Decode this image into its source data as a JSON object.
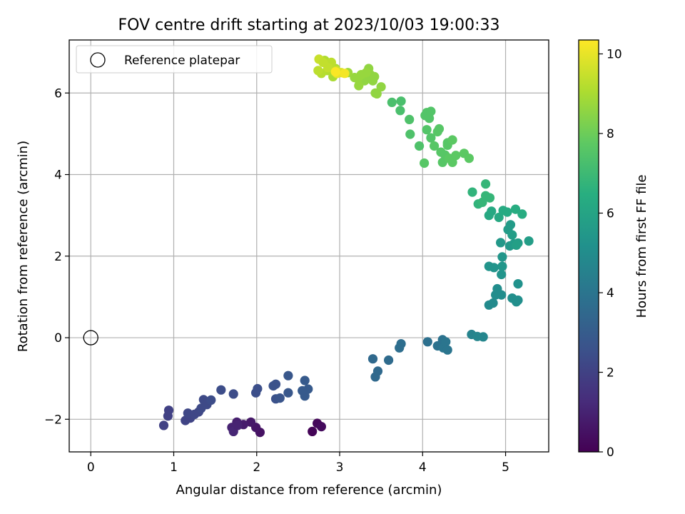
{
  "chart_data": {
    "type": "scatter",
    "title": "FOV centre drift starting at 2023/10/03 19:00:33",
    "xlabel": "Angular distance from reference (arcmin)",
    "ylabel": "Rotation from reference (arcmin)",
    "xlim": [
      -0.26,
      5.52
    ],
    "ylim": [
      -2.8,
      7.3
    ],
    "xticks": [
      0,
      1,
      2,
      3,
      4,
      5
    ],
    "yticks": [
      -2,
      0,
      2,
      4,
      6
    ],
    "grid": true,
    "legend": {
      "position": "top-left",
      "entries": [
        {
          "label": "Reference platepar",
          "marker": "open-circle"
        }
      ]
    },
    "reference_point": {
      "x": 0,
      "y": 0,
      "label": "Reference platepar"
    },
    "colorbar": {
      "label": "Hours from first FF file",
      "min": 0,
      "max": 10.35,
      "ticks": [
        0,
        2,
        4,
        6,
        8,
        10
      ],
      "colormap": "viridis"
    },
    "points": [
      {
        "x": 2.67,
        "y": -2.3,
        "c": 0.1
      },
      {
        "x": 2.73,
        "y": -2.1,
        "c": 0.2
      },
      {
        "x": 2.78,
        "y": -2.18,
        "c": 0.3
      },
      {
        "x": 2.04,
        "y": -2.32,
        "c": 0.5
      },
      {
        "x": 1.99,
        "y": -2.2,
        "c": 0.6
      },
      {
        "x": 1.93,
        "y": -2.07,
        "c": 0.7
      },
      {
        "x": 1.84,
        "y": -2.13,
        "c": 0.8
      },
      {
        "x": 1.76,
        "y": -2.07,
        "c": 0.9
      },
      {
        "x": 1.7,
        "y": -2.2,
        "c": 1.0
      },
      {
        "x": 1.72,
        "y": -2.3,
        "c": 1.1
      },
      {
        "x": 1.77,
        "y": -2.15,
        "c": 1.0
      },
      {
        "x": 0.88,
        "y": -2.15,
        "c": 2.0
      },
      {
        "x": 0.93,
        "y": -1.92,
        "c": 2.0
      },
      {
        "x": 0.94,
        "y": -1.78,
        "c": 2.0
      },
      {
        "x": 1.14,
        "y": -2.03,
        "c": 2.1
      },
      {
        "x": 1.2,
        "y": -1.97,
        "c": 2.1
      },
      {
        "x": 1.17,
        "y": -1.85,
        "c": 2.2
      },
      {
        "x": 1.25,
        "y": -1.88,
        "c": 2.2
      },
      {
        "x": 1.3,
        "y": -1.82,
        "c": 2.2
      },
      {
        "x": 1.33,
        "y": -1.73,
        "c": 2.3
      },
      {
        "x": 1.36,
        "y": -1.52,
        "c": 2.3
      },
      {
        "x": 1.4,
        "y": -1.64,
        "c": 2.3
      },
      {
        "x": 1.45,
        "y": -1.53,
        "c": 2.4
      },
      {
        "x": 1.57,
        "y": -1.28,
        "c": 2.4
      },
      {
        "x": 1.72,
        "y": -1.38,
        "c": 2.4
      },
      {
        "x": 1.99,
        "y": -1.35,
        "c": 2.5
      },
      {
        "x": 2.01,
        "y": -1.25,
        "c": 2.5
      },
      {
        "x": 2.2,
        "y": -1.18,
        "c": 2.6
      },
      {
        "x": 2.23,
        "y": -1.14,
        "c": 2.6
      },
      {
        "x": 2.23,
        "y": -1.5,
        "c": 2.6
      },
      {
        "x": 2.28,
        "y": -1.48,
        "c": 2.7
      },
      {
        "x": 2.38,
        "y": -1.35,
        "c": 2.8
      },
      {
        "x": 2.38,
        "y": -0.93,
        "c": 2.8
      },
      {
        "x": 2.58,
        "y": -1.05,
        "c": 2.9
      },
      {
        "x": 2.58,
        "y": -1.43,
        "c": 2.9
      },
      {
        "x": 2.62,
        "y": -1.26,
        "c": 2.9
      },
      {
        "x": 2.55,
        "y": -1.3,
        "c": 2.9
      },
      {
        "x": 3.4,
        "y": -0.52,
        "c": 3.5
      },
      {
        "x": 3.43,
        "y": -0.96,
        "c": 3.5
      },
      {
        "x": 3.46,
        "y": -0.82,
        "c": 3.5
      },
      {
        "x": 3.59,
        "y": -0.55,
        "c": 3.6
      },
      {
        "x": 3.72,
        "y": -0.25,
        "c": 3.7
      },
      {
        "x": 3.74,
        "y": -0.15,
        "c": 3.7
      },
      {
        "x": 4.06,
        "y": -0.1,
        "c": 3.8
      },
      {
        "x": 4.18,
        "y": -0.2,
        "c": 3.9
      },
      {
        "x": 4.24,
        "y": -0.05,
        "c": 3.9
      },
      {
        "x": 4.25,
        "y": -0.25,
        "c": 4.0
      },
      {
        "x": 4.28,
        "y": -0.1,
        "c": 4.0
      },
      {
        "x": 4.3,
        "y": -0.3,
        "c": 4.0
      },
      {
        "x": 4.59,
        "y": 0.08,
        "c": 4.6
      },
      {
        "x": 4.66,
        "y": 0.03,
        "c": 4.7
      },
      {
        "x": 4.73,
        "y": 0.02,
        "c": 4.7
      },
      {
        "x": 4.8,
        "y": 0.8,
        "c": 4.9
      },
      {
        "x": 4.85,
        "y": 0.85,
        "c": 4.9
      },
      {
        "x": 4.88,
        "y": 1.05,
        "c": 5.0
      },
      {
        "x": 4.9,
        "y": 1.2,
        "c": 5.0
      },
      {
        "x": 4.95,
        "y": 1.05,
        "c": 5.0
      },
      {
        "x": 5.08,
        "y": 0.97,
        "c": 5.1
      },
      {
        "x": 5.13,
        "y": 0.88,
        "c": 5.1
      },
      {
        "x": 5.15,
        "y": 0.92,
        "c": 5.1
      },
      {
        "x": 5.15,
        "y": 1.32,
        "c": 5.2
      },
      {
        "x": 4.8,
        "y": 1.75,
        "c": 5.3
      },
      {
        "x": 4.86,
        "y": 1.72,
        "c": 5.3
      },
      {
        "x": 4.95,
        "y": 1.55,
        "c": 5.3
      },
      {
        "x": 4.96,
        "y": 1.75,
        "c": 5.4
      },
      {
        "x": 4.96,
        "y": 1.98,
        "c": 5.4
      },
      {
        "x": 4.94,
        "y": 2.33,
        "c": 5.5
      },
      {
        "x": 5.05,
        "y": 2.25,
        "c": 5.5
      },
      {
        "x": 5.1,
        "y": 2.3,
        "c": 5.6
      },
      {
        "x": 5.03,
        "y": 2.65,
        "c": 5.6
      },
      {
        "x": 5.06,
        "y": 2.77,
        "c": 5.6
      },
      {
        "x": 5.08,
        "y": 2.52,
        "c": 5.7
      },
      {
        "x": 5.15,
        "y": 2.32,
        "c": 5.7
      },
      {
        "x": 5.28,
        "y": 2.37,
        "c": 5.7
      },
      {
        "x": 5.13,
        "y": 2.27,
        "c": 5.8
      },
      {
        "x": 4.8,
        "y": 3.0,
        "c": 6.2
      },
      {
        "x": 4.83,
        "y": 3.1,
        "c": 6.2
      },
      {
        "x": 4.92,
        "y": 2.95,
        "c": 6.2
      },
      {
        "x": 4.97,
        "y": 3.12,
        "c": 6.3
      },
      {
        "x": 5.02,
        "y": 3.08,
        "c": 6.3
      },
      {
        "x": 5.12,
        "y": 3.15,
        "c": 6.4
      },
      {
        "x": 5.2,
        "y": 3.03,
        "c": 6.4
      },
      {
        "x": 4.6,
        "y": 3.57,
        "c": 6.7
      },
      {
        "x": 4.67,
        "y": 3.28,
        "c": 6.7
      },
      {
        "x": 4.72,
        "y": 3.32,
        "c": 6.8
      },
      {
        "x": 4.76,
        "y": 3.48,
        "c": 6.8
      },
      {
        "x": 4.81,
        "y": 3.43,
        "c": 6.8
      },
      {
        "x": 4.76,
        "y": 3.77,
        "c": 6.8
      },
      {
        "x": 3.63,
        "y": 5.77,
        "c": 7.3
      },
      {
        "x": 3.73,
        "y": 5.57,
        "c": 7.3
      },
      {
        "x": 3.74,
        "y": 5.8,
        "c": 7.3
      },
      {
        "x": 3.84,
        "y": 5.35,
        "c": 7.4
      },
      {
        "x": 3.85,
        "y": 4.99,
        "c": 7.4
      },
      {
        "x": 3.96,
        "y": 4.7,
        "c": 7.4
      },
      {
        "x": 4.03,
        "y": 5.45,
        "c": 7.5
      },
      {
        "x": 4.05,
        "y": 5.52,
        "c": 7.5
      },
      {
        "x": 4.08,
        "y": 5.38,
        "c": 7.5
      },
      {
        "x": 4.1,
        "y": 5.55,
        "c": 7.5
      },
      {
        "x": 4.05,
        "y": 5.1,
        "c": 7.5
      },
      {
        "x": 4.1,
        "y": 4.9,
        "c": 7.5
      },
      {
        "x": 4.14,
        "y": 4.7,
        "c": 7.6
      },
      {
        "x": 4.18,
        "y": 5.05,
        "c": 7.6
      },
      {
        "x": 4.2,
        "y": 5.12,
        "c": 7.6
      },
      {
        "x": 4.22,
        "y": 4.55,
        "c": 7.6
      },
      {
        "x": 4.24,
        "y": 4.3,
        "c": 7.6
      },
      {
        "x": 4.27,
        "y": 4.48,
        "c": 7.6
      },
      {
        "x": 4.3,
        "y": 4.78,
        "c": 7.6
      },
      {
        "x": 4.3,
        "y": 4.72,
        "c": 7.6
      },
      {
        "x": 4.32,
        "y": 4.4,
        "c": 7.7
      },
      {
        "x": 4.36,
        "y": 4.85,
        "c": 7.7
      },
      {
        "x": 4.36,
        "y": 4.3,
        "c": 7.7
      },
      {
        "x": 4.4,
        "y": 4.47,
        "c": 7.7
      },
      {
        "x": 4.5,
        "y": 4.52,
        "c": 7.7
      },
      {
        "x": 4.56,
        "y": 4.4,
        "c": 7.7
      },
      {
        "x": 4.02,
        "y": 4.28,
        "c": 7.6
      },
      {
        "x": 3.3,
        "y": 6.3,
        "c": 8.6
      },
      {
        "x": 3.35,
        "y": 6.6,
        "c": 8.6
      },
      {
        "x": 3.37,
        "y": 6.45,
        "c": 8.6
      },
      {
        "x": 3.4,
        "y": 6.3,
        "c": 8.6
      },
      {
        "x": 3.42,
        "y": 6.4,
        "c": 8.6
      },
      {
        "x": 3.45,
        "y": 5.98,
        "c": 8.6
      },
      {
        "x": 3.5,
        "y": 6.15,
        "c": 8.6
      },
      {
        "x": 3.43,
        "y": 6.0,
        "c": 8.6
      },
      {
        "x": 3.22,
        "y": 6.35,
        "c": 8.7
      },
      {
        "x": 3.26,
        "y": 6.45,
        "c": 8.7
      },
      {
        "x": 3.18,
        "y": 6.38,
        "c": 8.7
      },
      {
        "x": 3.23,
        "y": 6.18,
        "c": 8.7
      },
      {
        "x": 3.32,
        "y": 6.5,
        "c": 8.7
      },
      {
        "x": 3.1,
        "y": 6.5,
        "c": 8.8
      },
      {
        "x": 2.92,
        "y": 6.4,
        "c": 9.0
      },
      {
        "x": 2.95,
        "y": 6.6,
        "c": 9.0
      },
      {
        "x": 2.85,
        "y": 6.55,
        "c": 9.1
      },
      {
        "x": 2.82,
        "y": 6.8,
        "c": 9.1
      },
      {
        "x": 2.78,
        "y": 6.48,
        "c": 9.2
      },
      {
        "x": 2.74,
        "y": 6.55,
        "c": 9.3
      },
      {
        "x": 2.9,
        "y": 6.75,
        "c": 9.3
      },
      {
        "x": 2.86,
        "y": 6.62,
        "c": 9.4
      },
      {
        "x": 2.96,
        "y": 6.55,
        "c": 9.6
      },
      {
        "x": 3.02,
        "y": 6.5,
        "c": 9.8
      },
      {
        "x": 2.97,
        "y": 6.48,
        "c": 10.0
      },
      {
        "x": 2.75,
        "y": 6.83,
        "c": 9.5
      },
      {
        "x": 2.8,
        "y": 6.75,
        "c": 9.4
      },
      {
        "x": 3.06,
        "y": 6.48,
        "c": 10.2
      },
      {
        "x": 2.95,
        "y": 6.52,
        "c": 10.3
      }
    ]
  }
}
